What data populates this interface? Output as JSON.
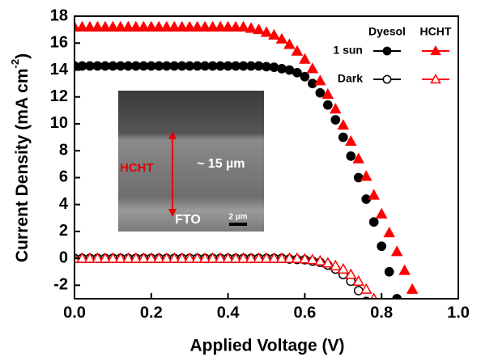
{
  "chart_data": {
    "type": "scatter",
    "xlabel": "Applied Voltage (V)",
    "ylabel": {
      "main": "Current Density (mA cm",
      "sup": "-2",
      "end": ")"
    },
    "xlim": [
      0,
      1.0
    ],
    "xticks": [
      {
        "value": 0,
        "label": "0.0"
      },
      0.2,
      0.4,
      0.6,
      0.8,
      {
        "value": 1,
        "label": "1.0"
      }
    ],
    "ylim": [
      -3,
      18
    ],
    "yticks": [
      -2,
      0,
      2,
      4,
      6,
      8,
      10,
      12,
      14,
      16,
      18
    ],
    "legend": {
      "columns": [
        "Dyesol",
        "HCHT"
      ],
      "rows": [
        "1 sun",
        "Dark"
      ],
      "corner": "upper right"
    },
    "x": [
      0,
      0.02,
      0.04,
      0.06,
      0.08,
      0.1,
      0.12,
      0.14,
      0.16,
      0.18,
      0.2,
      0.22,
      0.24,
      0.26,
      0.28,
      0.3,
      0.32,
      0.34,
      0.36,
      0.38,
      0.4,
      0.42,
      0.44,
      0.46,
      0.48,
      0.5,
      0.52,
      0.54,
      0.56,
      0.58,
      0.6,
      0.62,
      0.64,
      0.66,
      0.68,
      0.7,
      0.72,
      0.74,
      0.76,
      0.78,
      0.8,
      0.82,
      0.84,
      0.86,
      0.88,
      0.9
    ],
    "series": [
      {
        "color": "#000000",
        "marker": "circle",
        "filled": true,
        "values": [
          14.3,
          14.3,
          14.3,
          14.3,
          14.3,
          14.3,
          14.3,
          14.3,
          14.3,
          14.3,
          14.3,
          14.3,
          14.3,
          14.3,
          14.3,
          14.3,
          14.3,
          14.3,
          14.3,
          14.3,
          14.3,
          14.3,
          14.3,
          14.3,
          14.3,
          14.25,
          14.2,
          14.1,
          14.0,
          13.8,
          13.5,
          13.0,
          12.3,
          11.4,
          10.3,
          9.0,
          7.6,
          6.0,
          4.4,
          2.7,
          0.9,
          -1.0,
          -3.0,
          null,
          null,
          null
        ]
      },
      {
        "color": "#ff0000",
        "marker": "triangle",
        "filled": true,
        "values": [
          17.2,
          17.2,
          17.2,
          17.2,
          17.2,
          17.2,
          17.2,
          17.2,
          17.2,
          17.2,
          17.2,
          17.2,
          17.2,
          17.2,
          17.2,
          17.2,
          17.2,
          17.2,
          17.2,
          17.2,
          17.2,
          17.2,
          17.2,
          17.1,
          17.0,
          16.8,
          16.6,
          16.3,
          15.9,
          15.4,
          14.8,
          14.1,
          13.2,
          12.2,
          11.1,
          9.9,
          8.7,
          7.4,
          6.1,
          4.7,
          3.3,
          1.9,
          0.5,
          -0.9,
          -2.3,
          null
        ]
      },
      {
        "color": "#000000",
        "marker": "circle",
        "filled": false,
        "values": [
          0,
          0,
          0,
          0,
          0,
          0,
          0,
          0,
          0,
          0,
          0,
          0,
          0,
          0,
          0,
          0,
          0,
          0,
          0,
          0,
          0,
          0,
          0,
          0,
          0,
          0,
          0,
          0,
          -0.05,
          -0.08,
          -0.1,
          -0.2,
          -0.3,
          -0.5,
          -0.8,
          -1.2,
          -1.7,
          -2.4,
          -3.2,
          null,
          null,
          null,
          null,
          null,
          null,
          null
        ]
      },
      {
        "color": "#ff0000",
        "marker": "triangle",
        "filled": false,
        "values": [
          0,
          0,
          0,
          0,
          0,
          0,
          0,
          0,
          0,
          0,
          0,
          0,
          0,
          0,
          0,
          0,
          0,
          0,
          0,
          0,
          0,
          0,
          0,
          0,
          0,
          0,
          0,
          0,
          0,
          0,
          -0.05,
          -0.1,
          -0.2,
          -0.35,
          -0.55,
          -0.8,
          -1.2,
          -1.7,
          -2.3,
          -3.0,
          null,
          null,
          null,
          null,
          null,
          null
        ]
      }
    ],
    "inset": {
      "labels": [
        "HCHT",
        "~ 15 µm",
        "FTO",
        "2 µm"
      ]
    }
  }
}
